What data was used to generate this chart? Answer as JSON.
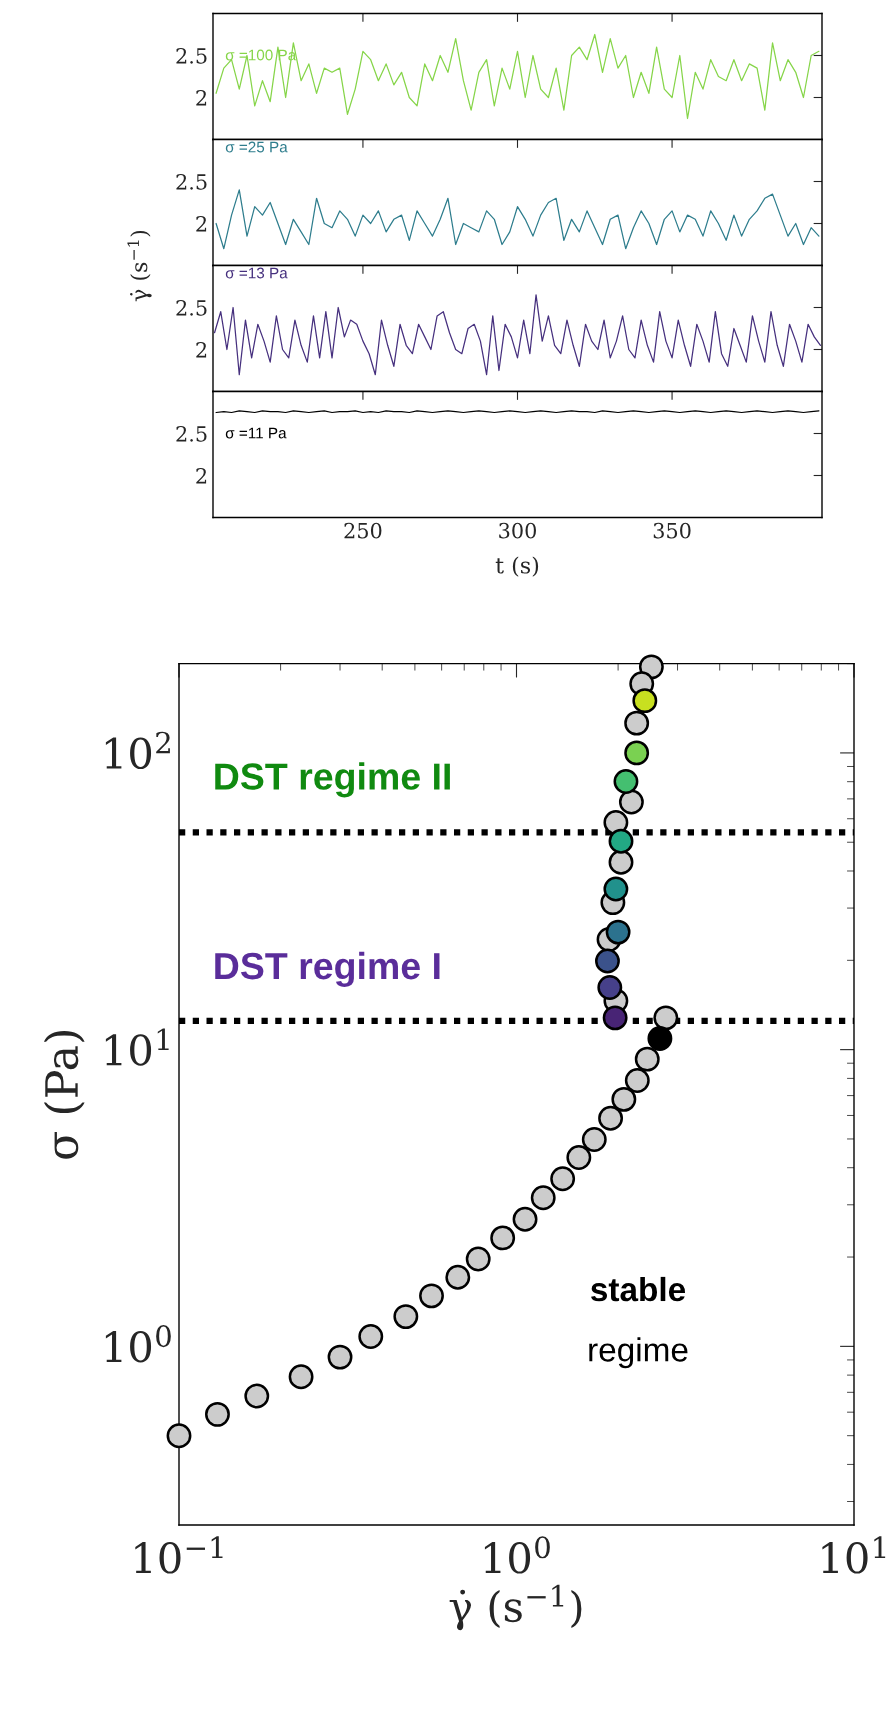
{
  "chart_data": [
    {
      "type": "line",
      "x": [
        202.5,
        205,
        207.5,
        210,
        212.5,
        215,
        217.5,
        220,
        222.5,
        225,
        227.5,
        230,
        232.5,
        235,
        237.5,
        240,
        242.5,
        245,
        247.5,
        250,
        252.5,
        255,
        257.5,
        260,
        262.5,
        265,
        267.5,
        270,
        272.5,
        275,
        277.5,
        280,
        282.5,
        285,
        287.5,
        290,
        292.5,
        295,
        297.5,
        300,
        302.5,
        305,
        307.5,
        310,
        312.5,
        315,
        317.5,
        320,
        322.5,
        325,
        327.5,
        330,
        332.5,
        335,
        337.5,
        340,
        342.5,
        345,
        347.5,
        350,
        352.5,
        355,
        357.5,
        360,
        362.5,
        365,
        367.5,
        370,
        372.5,
        375,
        377.5,
        380,
        382.5,
        385,
        387.5,
        390,
        392.5,
        395,
        397.5
      ],
      "series": [
        {
          "name": "σ =100 Pa",
          "color": "#86d549",
          "values": [
            2.05,
            2.35,
            2.45,
            2.1,
            2.5,
            1.9,
            2.2,
            1.95,
            2.6,
            2.0,
            2.65,
            2.2,
            2.4,
            2.05,
            2.35,
            2.3,
            2.35,
            1.8,
            2.1,
            2.55,
            2.45,
            2.2,
            2.4,
            2.15,
            2.3,
            2.0,
            1.9,
            2.4,
            2.2,
            2.5,
            2.3,
            2.7,
            2.2,
            1.85,
            2.3,
            2.45,
            1.9,
            2.35,
            2.1,
            2.55,
            2.0,
            2.5,
            2.1,
            2.0,
            2.35,
            1.85,
            2.5,
            2.6,
            2.45,
            2.75,
            2.3,
            2.7,
            2.35,
            2.5,
            2.0,
            2.3,
            2.05,
            2.6,
            2.1,
            2.0,
            2.5,
            1.75,
            2.3,
            2.1,
            2.45,
            2.25,
            2.2,
            2.45,
            2.2,
            2.4,
            2.35,
            1.85,
            2.65,
            2.2,
            2.45,
            2.3,
            2.0,
            2.5,
            2.55
          ]
        }
      ],
      "xlim": [
        201.5,
        398.5
      ],
      "ylim": [
        1.5,
        3
      ],
      "xticks": [
        250,
        300,
        350
      ],
      "yticks": [
        2,
        2.5
      ],
      "tick_labels": "y"
    },
    {
      "type": "line",
      "x": [
        202.5,
        205,
        207.5,
        210,
        212.5,
        215,
        217.5,
        220,
        222.5,
        225,
        227.5,
        230,
        232.5,
        235,
        237.5,
        240,
        242.5,
        245,
        247.5,
        250,
        252.5,
        255,
        257.5,
        260,
        262.5,
        265,
        267.5,
        270,
        272.5,
        275,
        277.5,
        280,
        282.5,
        285,
        287.5,
        290,
        292.5,
        295,
        297.5,
        300,
        302.5,
        305,
        307.5,
        310,
        312.5,
        315,
        317.5,
        320,
        322.5,
        325,
        327.5,
        330,
        332.5,
        335,
        337.5,
        340,
        342.5,
        345,
        347.5,
        350,
        352.5,
        355,
        357.5,
        360,
        362.5,
        365,
        367.5,
        370,
        372.5,
        375,
        377.5,
        380,
        382.5,
        385,
        387.5,
        390,
        392.5,
        395,
        397.5
      ],
      "series": [
        {
          "name": "σ =25 Pa",
          "color": "#2e7d8d",
          "values": [
            2.0,
            1.7,
            2.1,
            2.4,
            1.85,
            2.2,
            2.1,
            2.25,
            2.0,
            1.75,
            2.05,
            1.9,
            1.75,
            2.3,
            2.0,
            1.95,
            2.15,
            2.05,
            1.85,
            2.1,
            2.0,
            2.15,
            1.9,
            2.05,
            2.1,
            1.8,
            2.15,
            2.0,
            1.85,
            2.05,
            2.3,
            1.75,
            2.0,
            1.95,
            1.9,
            2.15,
            2.05,
            1.75,
            1.9,
            2.2,
            2.05,
            1.85,
            2.1,
            2.25,
            2.3,
            1.8,
            2.05,
            1.9,
            2.15,
            1.95,
            1.75,
            2.05,
            2.1,
            1.7,
            1.95,
            2.15,
            2.0,
            1.75,
            2.05,
            2.15,
            1.9,
            2.1,
            2.05,
            1.85,
            2.15,
            2.0,
            1.8,
            2.1,
            1.85,
            2.05,
            2.15,
            2.3,
            2.35,
            2.1,
            1.85,
            2.0,
            1.75,
            1.95,
            1.85
          ]
        }
      ],
      "xlim": [
        201.5,
        398.5
      ],
      "ylim": [
        1.5,
        3
      ],
      "xticks": [
        250,
        300,
        350
      ],
      "yticks": [
        2,
        2.5
      ],
      "tick_labels": "y",
      "ylabel": "γ̇ (s$^{−1}$)"
    },
    {
      "type": "line",
      "x": [
        202,
        204,
        206,
        208,
        210,
        212,
        214,
        216,
        218,
        220,
        222,
        224,
        226,
        228,
        230,
        232,
        234,
        236,
        238,
        240,
        242,
        244,
        246,
        248,
        250,
        252,
        254,
        256,
        258,
        260,
        262,
        264,
        266,
        268,
        270,
        272,
        274,
        276,
        278,
        280,
        282,
        284,
        286,
        288,
        290,
        292,
        294,
        296,
        298,
        300,
        302,
        304,
        306,
        308,
        310,
        312,
        314,
        316,
        318,
        320,
        322,
        324,
        326,
        328,
        330,
        332,
        334,
        336,
        338,
        340,
        342,
        344,
        346,
        348,
        350,
        352,
        354,
        356,
        358,
        360,
        362,
        364,
        366,
        368,
        370,
        372,
        374,
        376,
        378,
        380,
        382,
        384,
        386,
        388,
        390,
        392,
        394,
        396,
        398
      ],
      "series": [
        {
          "name": "σ =13 Pa",
          "color": "#46307e",
          "values": [
            2.2,
            2.45,
            2.0,
            2.5,
            1.7,
            2.35,
            1.9,
            2.3,
            2.1,
            1.85,
            2.4,
            2.0,
            1.9,
            2.35,
            2.05,
            1.85,
            2.4,
            1.9,
            2.45,
            1.9,
            2.5,
            2.15,
            2.35,
            2.3,
            2.1,
            1.95,
            1.7,
            2.35,
            2.05,
            1.8,
            2.3,
            2.05,
            1.95,
            2.3,
            2.15,
            2.0,
            2.4,
            2.45,
            2.2,
            2.0,
            1.95,
            2.25,
            2.3,
            2.1,
            1.7,
            2.4,
            1.75,
            2.3,
            2.15,
            1.9,
            2.35,
            1.95,
            2.65,
            2.1,
            2.4,
            2.05,
            1.95,
            2.35,
            2.05,
            1.8,
            2.3,
            2.1,
            2.0,
            2.35,
            1.9,
            2.1,
            2.4,
            2.0,
            1.9,
            2.35,
            2.05,
            1.85,
            2.45,
            2.1,
            1.9,
            2.35,
            2.05,
            1.8,
            2.3,
            2.1,
            1.85,
            2.45,
            1.95,
            1.8,
            2.25,
            2.05,
            1.85,
            2.4,
            2.1,
            1.85,
            2.45,
            2.05,
            1.8,
            2.3,
            2.1,
            1.85,
            2.3,
            2.15,
            2.05
          ]
        }
      ],
      "xlim": [
        201.5,
        398.5
      ],
      "ylim": [
        1.5,
        3
      ],
      "xticks": [
        250,
        300,
        350
      ],
      "yticks": [
        2,
        2.5
      ],
      "tick_labels": "y"
    },
    {
      "type": "line",
      "x": [
        202.5,
        205,
        207.5,
        210,
        212.5,
        215,
        217.5,
        220,
        222.5,
        225,
        227.5,
        230,
        232.5,
        235,
        237.5,
        240,
        242.5,
        245,
        247.5,
        250,
        252.5,
        255,
        257.5,
        260,
        262.5,
        265,
        267.5,
        270,
        272.5,
        275,
        277.5,
        280,
        282.5,
        285,
        287.5,
        290,
        292.5,
        295,
        297.5,
        300,
        302.5,
        305,
        307.5,
        310,
        312.5,
        315,
        317.5,
        320,
        322.5,
        325,
        327.5,
        330,
        332.5,
        335,
        337.5,
        340,
        342.5,
        345,
        347.5,
        350,
        352.5,
        355,
        357.5,
        360,
        362.5,
        365,
        367.5,
        370,
        372.5,
        375,
        377.5,
        380,
        382.5,
        385,
        387.5,
        390,
        392.5,
        395,
        397.5
      ],
      "series": [
        {
          "name": "σ =11 Pa",
          "color": "#000000",
          "values": [
            2.75,
            2.76,
            2.75,
            2.77,
            2.76,
            2.75,
            2.77,
            2.76,
            2.76,
            2.75,
            2.77,
            2.76,
            2.75,
            2.76,
            2.77,
            2.75,
            2.76,
            2.76,
            2.77,
            2.75,
            2.76,
            2.75,
            2.77,
            2.76,
            2.76,
            2.75,
            2.77,
            2.76,
            2.75,
            2.76,
            2.77,
            2.76,
            2.75,
            2.76,
            2.77,
            2.76,
            2.75,
            2.76,
            2.77,
            2.76,
            2.75,
            2.76,
            2.77,
            2.76,
            2.75,
            2.76,
            2.77,
            2.76,
            2.76,
            2.75,
            2.77,
            2.76,
            2.75,
            2.76,
            2.77,
            2.76,
            2.75,
            2.76,
            2.77,
            2.76,
            2.75,
            2.76,
            2.77,
            2.76,
            2.75,
            2.76,
            2.77,
            2.76,
            2.75,
            2.76,
            2.77,
            2.76,
            2.75,
            2.76,
            2.77,
            2.76,
            2.75,
            2.76,
            2.77
          ]
        }
      ],
      "xlim": [
        201.5,
        398.5
      ],
      "ylim": [
        1.5,
        3
      ],
      "xticks": [
        250,
        300,
        350
      ],
      "yticks": [
        2,
        2.5
      ],
      "xlabel": "t (s)"
    },
    {
      "type": "scatter",
      "log": "xy",
      "marker": "circle",
      "x": [
        0.1,
        0.13,
        0.17,
        0.23,
        0.3,
        0.37,
        0.47,
        0.56,
        0.67,
        0.77,
        0.91,
        1.06,
        1.2,
        1.37,
        1.53,
        1.7,
        1.9,
        2.08,
        2.28,
        2.44,
        2.77,
        null,
        2.51,
        2.35,
        2.27,
        null,
        null,
        2.19,
        1.97,
        2.04,
        null,
        1.93,
        null,
        1.88,
        null,
        null,
        1.97,
        2.4,
        2.27,
        2.11,
        2.04,
        1.97,
        2.0,
        1.86,
        1.89,
        1.96,
        2.66
      ],
      "values": [
        0.5,
        0.59,
        0.68,
        0.79,
        0.92,
        1.08,
        1.26,
        1.48,
        1.71,
        1.97,
        2.32,
        2.68,
        3.17,
        3.67,
        4.33,
        4.98,
        5.87,
        6.8,
        7.87,
        9.29,
        12.8,
        null,
        195,
        171,
        126,
        null,
        null,
        68.3,
        58.3,
        42.8,
        null,
        31.3,
        null,
        23.5,
        null,
        null,
        14.6,
        150,
        100,
        80.1,
        50.4,
        34.8,
        24.9,
        19.9,
        16.2,
        12.8,
        10.9
      ],
      "colors": [
        "#cccccc",
        "#cccccc",
        "#cccccc",
        "#cccccc",
        "#cccccc",
        "#cccccc",
        "#cccccc",
        "#cccccc",
        "#cccccc",
        "#cccccc",
        "#cccccc",
        "#cccccc",
        "#cccccc",
        "#cccccc",
        "#cccccc",
        "#cccccc",
        "#cccccc",
        "#cccccc",
        "#cccccc",
        "#cccccc",
        "#cccccc",
        "#cccccc",
        "#cccccc",
        "#cccccc",
        "#cccccc",
        "#cccccc",
        "#cccccc",
        "#cccccc",
        "#cccccc",
        "#cccccc",
        "#cccccc",
        "#cccccc",
        "#cccccc",
        "#cccccc",
        "#cccccc",
        "#cccccc",
        "#cccccc",
        "#c8e020",
        "#7ad151",
        "#44bf70",
        "#22a884",
        "#21918c",
        "#2c728e",
        "#3b528b",
        "#46408a",
        "#482475",
        "#000000"
      ],
      "xlim": [
        0.1,
        10
      ],
      "ylim": [
        0.25,
        200
      ],
      "xticks": [
        {
          "value": 0.1,
          "label": "10$^{−1}$"
        },
        {
          "value": 1,
          "label": "10$^{0}$"
        },
        {
          "value": 10,
          "label": "10$^{1}$"
        }
      ],
      "yticks": [
        {
          "value": 1,
          "label": "10$^{0}$"
        },
        {
          "value": 10,
          "label": "10$^{1}$"
        },
        {
          "value": 100,
          "label": "10$^{2}$"
        }
      ],
      "xlabel": "γ̇ (s$^{−1}$)",
      "ylabel": "σ (Pa)",
      "ref_lines": [
        {
          "axis": "y",
          "value": 54,
          "color": "#000000",
          "line_style": "dotted"
        },
        {
          "axis": "y",
          "value": 12.5,
          "color": "#000000",
          "line_style": "dotted"
        }
      ],
      "annotations": [
        "DST regime II",
        "DST regime I",
        "stable",
        "regime"
      ]
    }
  ]
}
